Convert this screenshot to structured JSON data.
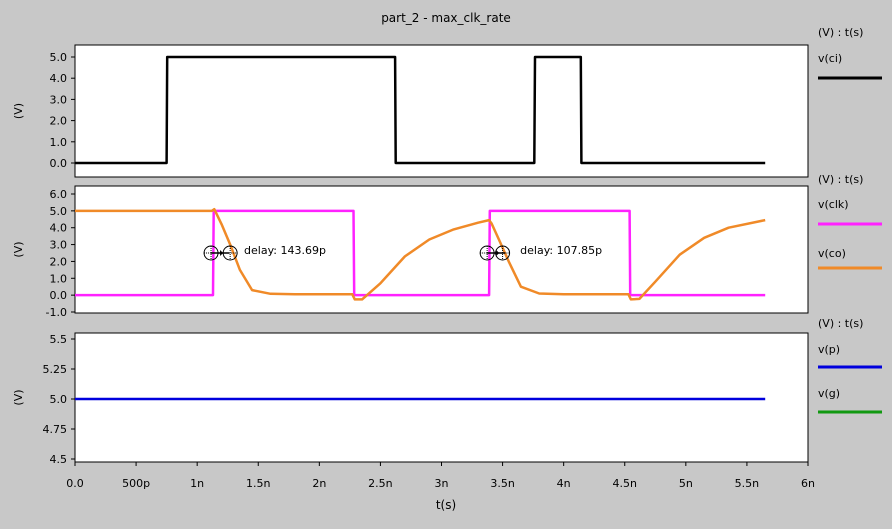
{
  "title": "part_2 - max_clk_rate",
  "xlabel": "t(s)",
  "chart_data": [
    {
      "type": "line",
      "unit_label": "(V) : t(s)",
      "ylabel": "(V)",
      "ylim": [
        -0.2,
        5.5
      ],
      "yticks": [
        0.0,
        1.0,
        2.0,
        3.0,
        4.0,
        5.0
      ],
      "ytick_labels": [
        "0.0",
        "1.0",
        "2.0",
        "3.0",
        "4.0",
        "5.0"
      ],
      "series": [
        {
          "name": "v(ci)",
          "color": "#000000",
          "x": [
            0,
            0.75,
            0.755,
            2.62,
            2.625,
            3.76,
            3.765,
            4.14,
            4.145,
            5.65
          ],
          "y": [
            0,
            0,
            5,
            5,
            0,
            0,
            5,
            5,
            0,
            0
          ]
        }
      ]
    },
    {
      "type": "line",
      "unit_label": "(V) : t(s)",
      "ylabel": "(V)",
      "ylim": [
        -1.0,
        6.0
      ],
      "yticks": [
        -1.0,
        0.0,
        1.0,
        2.0,
        3.0,
        4.0,
        5.0,
        6.0
      ],
      "ytick_labels": [
        "-1.0",
        "0.0",
        "1.0",
        "2.0",
        "3.0",
        "4.0",
        "5.0",
        "6.0"
      ],
      "series": [
        {
          "name": "v(clk)",
          "color": "#ff22ff",
          "x": [
            0,
            1.13,
            1.135,
            2.28,
            2.285,
            3.39,
            3.395,
            4.54,
            4.545,
            5.65
          ],
          "y": [
            0,
            0,
            5,
            5,
            0,
            0,
            5,
            5,
            0,
            0
          ]
        },
        {
          "name": "v(co)",
          "color": "#f08a28",
          "x": [
            0,
            1.12,
            1.14,
            1.2,
            1.27,
            1.35,
            1.45,
            1.6,
            1.8,
            2.0,
            2.27,
            2.29,
            2.35,
            2.5,
            2.7,
            2.9,
            3.1,
            3.3,
            3.39,
            3.41,
            3.47,
            3.55,
            3.65,
            3.8,
            4.0,
            4.2,
            4.53,
            4.55,
            4.62,
            4.75,
            4.95,
            5.15,
            5.35,
            5.65
          ],
          "y": [
            5,
            5,
            5.1,
            4.2,
            3.0,
            1.5,
            0.3,
            0.08,
            0.05,
            0.05,
            0.05,
            -0.25,
            -0.25,
            0.7,
            2.3,
            3.3,
            3.9,
            4.3,
            4.45,
            4.25,
            3.3,
            2.0,
            0.5,
            0.1,
            0.05,
            0.05,
            0.05,
            -0.25,
            -0.22,
            0.8,
            2.4,
            3.4,
            4.0,
            4.45
          ]
        }
      ],
      "annotations": [
        {
          "label": "delay: 143.69p",
          "x1": 1.13,
          "x2": 1.27,
          "y": 2.5
        },
        {
          "label": "delay: 107.85p",
          "x1": 3.39,
          "x2": 3.5,
          "y": 2.5
        }
      ]
    },
    {
      "type": "line",
      "unit_label": "(V) : t(s)",
      "ylabel": "(V)",
      "ylim": [
        4.5,
        5.5
      ],
      "yticks": [
        4.5,
        4.75,
        5.0,
        5.25,
        5.5
      ],
      "ytick_labels": [
        "4.5",
        "4.75",
        "5.0",
        "5.25",
        "5.5"
      ],
      "series": [
        {
          "name": "v(p)",
          "color": "#0000dd",
          "x": [
            0,
            5.65
          ],
          "y": [
            5,
            5
          ]
        },
        {
          "name": "v(g)",
          "color": "#119911",
          "x": [
            0,
            5.65
          ],
          "y": [
            5,
            5
          ],
          "hidden": true
        }
      ]
    }
  ],
  "x_axis": {
    "xlim": [
      0,
      6
    ],
    "ticks": [
      0,
      0.5,
      1,
      1.5,
      2,
      2.5,
      3,
      3.5,
      4,
      4.5,
      5,
      5.5,
      6
    ],
    "tick_labels": [
      "0.0",
      "500p",
      "1n",
      "1.5n",
      "2n",
      "2.5n",
      "3n",
      "3.5n",
      "4n",
      "4.5n",
      "5n",
      "5.5n",
      "6n"
    ]
  }
}
